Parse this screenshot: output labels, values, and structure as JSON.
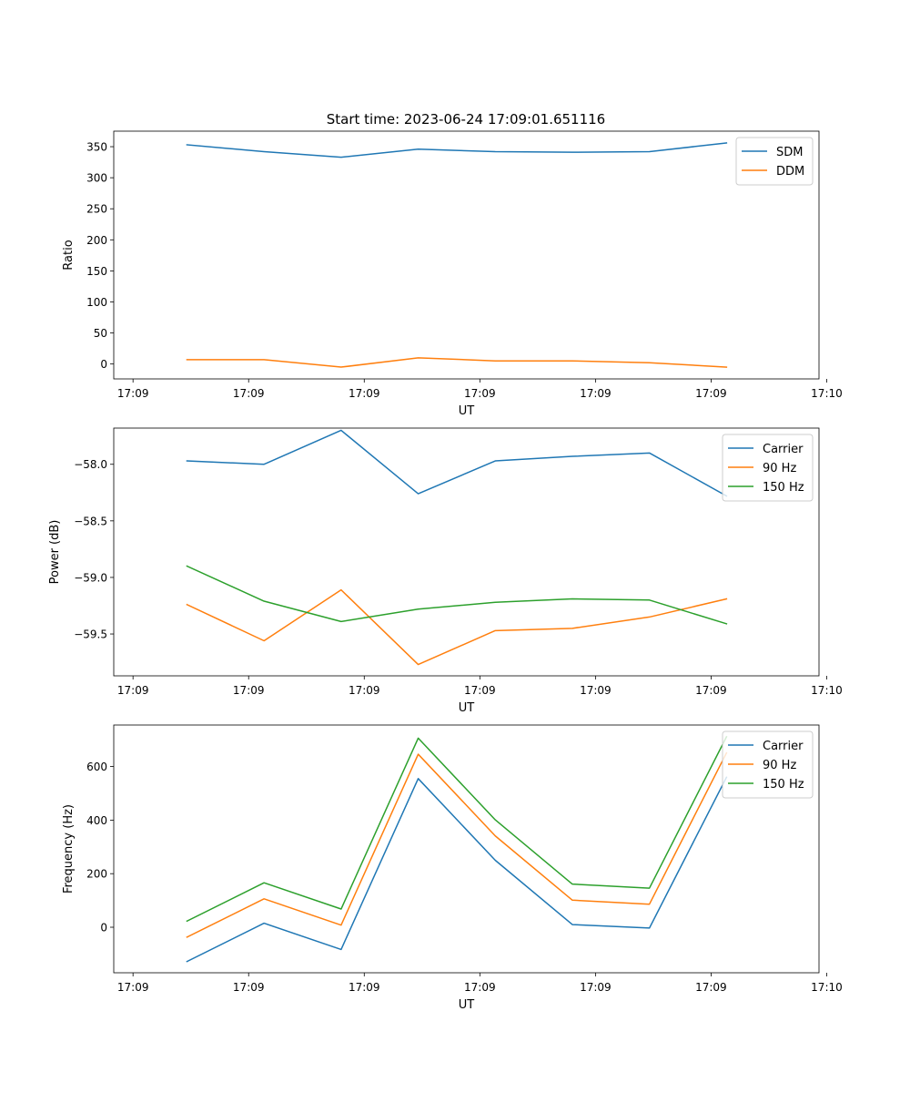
{
  "figure": {
    "title": "Start time: 2023-06-24 17:09:01.651116"
  },
  "colors": {
    "blue": "#1f77b4",
    "orange": "#ff7f0e",
    "green": "#2ca02c"
  },
  "chart_data": [
    {
      "type": "line",
      "title": "Start time: 2023-06-24 17:09:01.651116",
      "xlabel": "UT",
      "ylabel": "Ratio",
      "xlim": [
        -0.45,
        8.7
      ],
      "ylim": [
        -24,
        375
      ],
      "xticks": [
        -0.2,
        1.3,
        2.8,
        4.3,
        5.8,
        7.3,
        8.8
      ],
      "xticklabels": [
        "17:09",
        "17:09",
        "17:09",
        "17:09",
        "17:09",
        "17:09",
        "17:10"
      ],
      "yticks": [
        0,
        50,
        100,
        150,
        200,
        250,
        300,
        350
      ],
      "yticklabels": [
        "0",
        "50",
        "100",
        "150",
        "200",
        "250",
        "300",
        "350"
      ],
      "x": [
        0.5,
        1.5,
        2.5,
        3.5,
        4.5,
        5.5,
        6.5,
        7.5
      ],
      "legend": "top-right",
      "series": [
        {
          "name": "SDM",
          "color": "#1f77b4",
          "values": [
            353,
            342,
            333,
            346,
            342,
            341,
            342,
            356
          ]
        },
        {
          "name": "DDM",
          "color": "#ff7f0e",
          "values": [
            7,
            7,
            -5,
            10,
            5,
            5,
            2,
            -5
          ]
        }
      ]
    },
    {
      "type": "line",
      "xlabel": "UT",
      "ylabel": "Power (dB)",
      "xlim": [
        -0.45,
        8.7
      ],
      "ylim": [
        -59.87,
        -57.68
      ],
      "xticks": [
        -0.2,
        1.3,
        2.8,
        4.3,
        5.8,
        7.3,
        8.8
      ],
      "xticklabels": [
        "17:09",
        "17:09",
        "17:09",
        "17:09",
        "17:09",
        "17:09",
        "17:10"
      ],
      "yticks": [
        -59.5,
        -59.0,
        -58.5,
        -58.0
      ],
      "yticklabels": [
        "−59.5",
        "−59.0",
        "−58.5",
        "−58.0"
      ],
      "x": [
        0.5,
        1.5,
        2.5,
        3.5,
        4.5,
        5.5,
        6.5,
        7.5
      ],
      "legend": "top-right",
      "series": [
        {
          "name": "Carrier",
          "color": "#1f77b4",
          "values": [
            -57.97,
            -58.0,
            -57.7,
            -58.26,
            -57.97,
            -57.93,
            -57.9,
            -58.28
          ]
        },
        {
          "name": "90 Hz",
          "color": "#ff7f0e",
          "values": [
            -59.24,
            -59.56,
            -59.11,
            -59.77,
            -59.47,
            -59.45,
            -59.35,
            -59.19
          ]
        },
        {
          "name": "150 Hz",
          "color": "#2ca02c",
          "values": [
            -58.9,
            -59.21,
            -59.39,
            -59.28,
            -59.22,
            -59.19,
            -59.2,
            -59.41
          ]
        }
      ]
    },
    {
      "type": "line",
      "xlabel": "UT",
      "ylabel": "Frequency (Hz)",
      "xlim": [
        -0.45,
        8.7
      ],
      "ylim": [
        -170,
        755
      ],
      "xticks": [
        -0.2,
        1.3,
        2.8,
        4.3,
        5.8,
        7.3,
        8.8
      ],
      "xticklabels": [
        "17:09",
        "17:09",
        "17:09",
        "17:09",
        "17:09",
        "17:09",
        "17:10"
      ],
      "yticks": [
        0,
        200,
        400,
        600
      ],
      "yticklabels": [
        "0",
        "200",
        "400",
        "600"
      ],
      "x": [
        0.5,
        1.5,
        2.5,
        3.5,
        4.5,
        5.5,
        6.5,
        7.5
      ],
      "legend": "top-right",
      "series": [
        {
          "name": "Carrier",
          "color": "#1f77b4",
          "values": [
            -128,
            15,
            -83,
            555,
            250,
            10,
            -3,
            560
          ]
        },
        {
          "name": "90 Hz",
          "color": "#ff7f0e",
          "values": [
            -37,
            106,
            8,
            646,
            341,
            101,
            86,
            651
          ]
        },
        {
          "name": "150 Hz",
          "color": "#2ca02c",
          "values": [
            23,
            166,
            68,
            706,
            401,
            161,
            146,
            711
          ]
        }
      ]
    }
  ]
}
